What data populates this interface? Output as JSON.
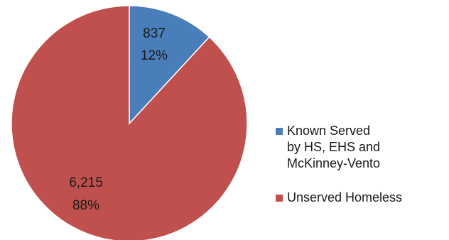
{
  "chart_data": {
    "type": "pie",
    "title": "",
    "categories": [
      "Known Served by HS, EHS and McKinney-Vento",
      "Unserved Homeless"
    ],
    "values": [
      837,
      6215
    ],
    "value_labels": [
      "837",
      "6,215"
    ],
    "percent_labels": [
      "12%",
      "88%"
    ],
    "colors": [
      "#4a7ebb",
      "#c0504d"
    ],
    "start_angle": "12 o'clock",
    "direction": "clockwise",
    "legend": {
      "placement": "right",
      "entries": [
        {
          "lines": [
            "Known Served",
            "by HS, EHS and",
            "McKinney-Vento"
          ],
          "color": "#4a7ebb"
        },
        {
          "lines": [
            "Unserved Homeless"
          ],
          "color": "#c0504d"
        }
      ]
    }
  }
}
